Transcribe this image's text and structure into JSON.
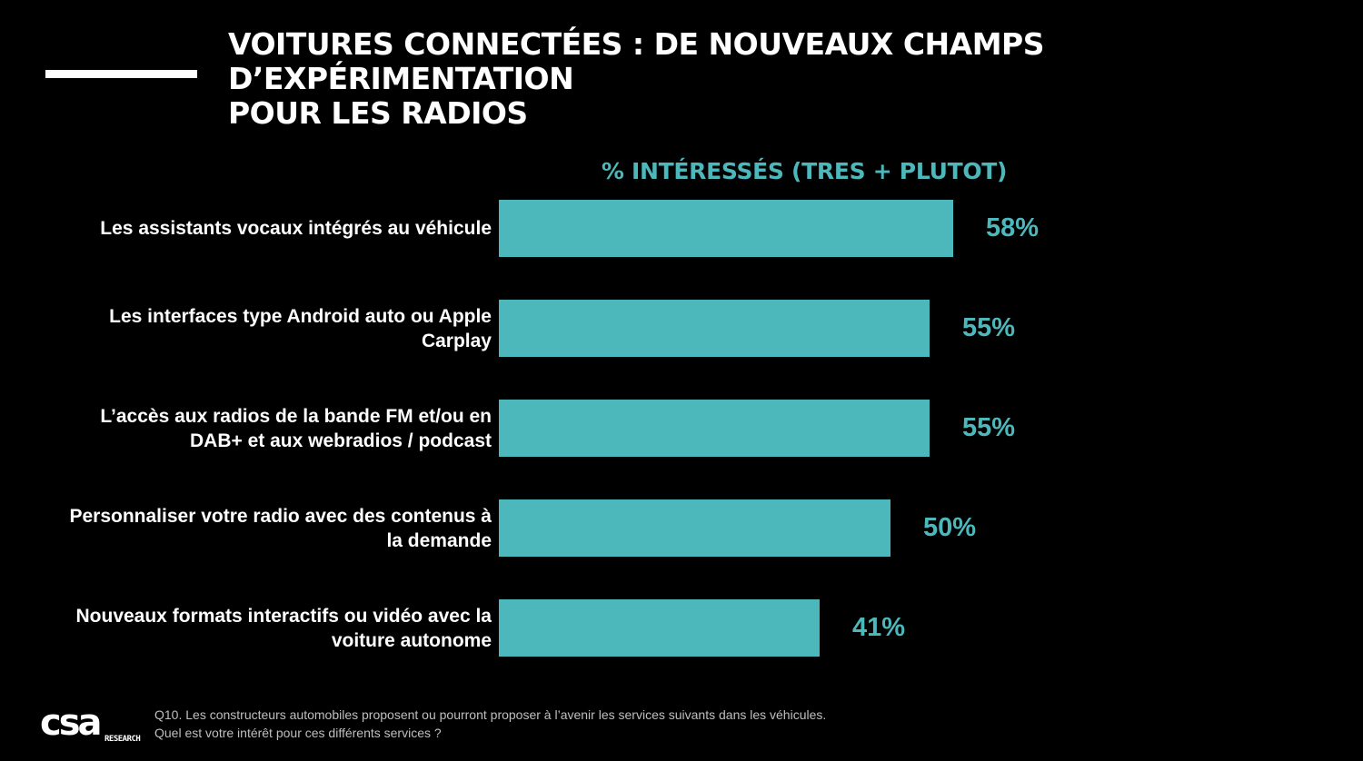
{
  "colors": {
    "background": "#000000",
    "accent": "#4db8bc",
    "text": "#ffffff"
  },
  "header": {
    "title_line1": "VOITURES CONNECTÉES : DE NOUVEAUX CHAMPS D’EXPÉRIMENTATION",
    "title_line2": "POUR LES RADIOS"
  },
  "chart_data": {
    "type": "bar",
    "orientation": "horizontal",
    "title": "% INTÉRESSÉS (TRES + PLUTOT)",
    "unit": "%",
    "xlim": [
      0,
      100
    ],
    "grid": false,
    "categories": [
      "Les assistants vocaux intégrés au véhicule",
      "Les interfaces type Android auto ou Apple Carplay",
      "L’accès aux radios de la bande FM et/ou en DAB+ et aux webradios / podcast",
      "Personnaliser votre radio avec des contenus à la demande",
      "Nouveaux formats interactifs ou vidéo avec la voiture autonome"
    ],
    "values": [
      58,
      55,
      55,
      50,
      41
    ],
    "labels": [
      "58%",
      "55%",
      "55%",
      "50%",
      "41%"
    ]
  },
  "footer": {
    "logo_text": "csa",
    "logo_subtext": "RESEARCH",
    "question_line1": "Q10. Les constructeurs automobiles proposent ou pourront proposer à l’avenir les services suivants dans les véhicules.",
    "question_line2": "Quel est votre intérêt pour ces différents services ?"
  }
}
